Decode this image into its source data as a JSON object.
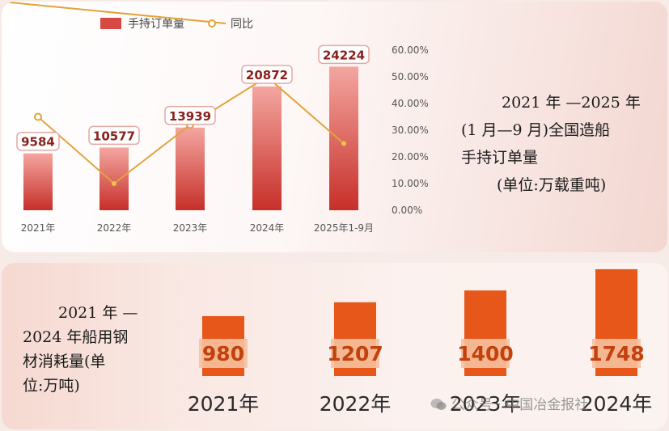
{
  "chart_data": [
    {
      "type": "bar",
      "series": [
        {
          "name": "手持订单量",
          "type": "bar",
          "values": [
            9584,
            10577,
            13939,
            20872,
            24224
          ]
        },
        {
          "name": "同比",
          "type": "line",
          "axis": "right",
          "values": [
            0.35,
            0.1,
            0.32,
            0.5,
            0.25
          ]
        }
      ],
      "categories": [
        "2021年",
        "2022年",
        "2023年",
        "2024年",
        "2025年1-9月"
      ],
      "value_labels": [
        "9584",
        "10577",
        "13939",
        "20872",
        "24224"
      ],
      "y_right_ticks": [
        "60.00%",
        "50.00%",
        "40.00%",
        "30.00%",
        "20.00%",
        "10.00%",
        "0.00%"
      ],
      "y_right_range": [
        0,
        0.6
      ],
      "y_left_range": [
        0,
        27000
      ],
      "legend_position": "top-left",
      "title_lines": [
        "2021 年 —2025 年",
        "(1 月—9 月)全国造船",
        "手持订单量",
        "(单位:万载重吨)"
      ],
      "colors": {
        "bar_top": "#f4a6a0",
        "bar_bottom": "#c72f29",
        "line": "#e2a33a",
        "point_fill": "#ffffff",
        "label": "#8b1f1a"
      }
    },
    {
      "type": "bar",
      "categories": [
        "2021年",
        "2022年",
        "2023年",
        "2024年"
      ],
      "values": [
        980,
        1207,
        1400,
        1748
      ],
      "value_labels": [
        "980",
        "1207",
        "1400",
        "1748"
      ],
      "title_lines": [
        "2021 年 —",
        "2024 年船用钢",
        "材消耗量(单",
        "位:万吨)"
      ],
      "colors": {
        "bar": "#e8571a",
        "label_band": "#f6c1a0",
        "label": "#c2410c"
      }
    }
  ],
  "watermark": "公众号 · 中国冶金报社"
}
